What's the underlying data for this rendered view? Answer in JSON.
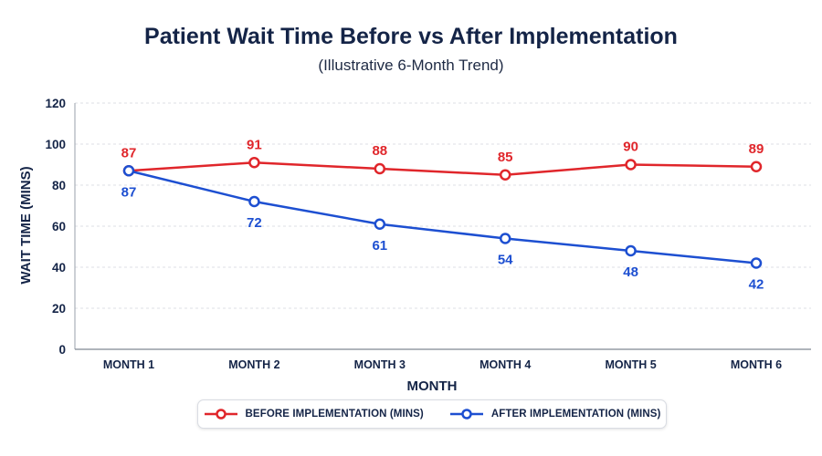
{
  "chart_data": {
    "type": "line",
    "title": "Patient Wait Time Before vs After Implementation",
    "subtitle": "(Illustrative 6-Month Trend)",
    "xlabel": "MONTH",
    "ylabel": "WAIT TIME (MINS)",
    "categories": [
      "MONTH 1",
      "MONTH 2",
      "MONTH 3",
      "MONTH 4",
      "MONTH 5",
      "MONTH 6"
    ],
    "ylim": [
      0,
      120
    ],
    "yticks": [
      0,
      20,
      40,
      60,
      80,
      100,
      120
    ],
    "grid": true,
    "legend_position": "bottom",
    "series": [
      {
        "name": "BEFORE IMPLEMENTATION (MINS)",
        "color": "#e0262b",
        "label_position": "above",
        "values": [
          87,
          91,
          88,
          85,
          90,
          89
        ]
      },
      {
        "name": "AFTER IMPLEMENTATION (MINS)",
        "color": "#1d4fd1",
        "label_position": "below",
        "values": [
          87,
          72,
          61,
          54,
          48,
          42
        ]
      }
    ]
  }
}
